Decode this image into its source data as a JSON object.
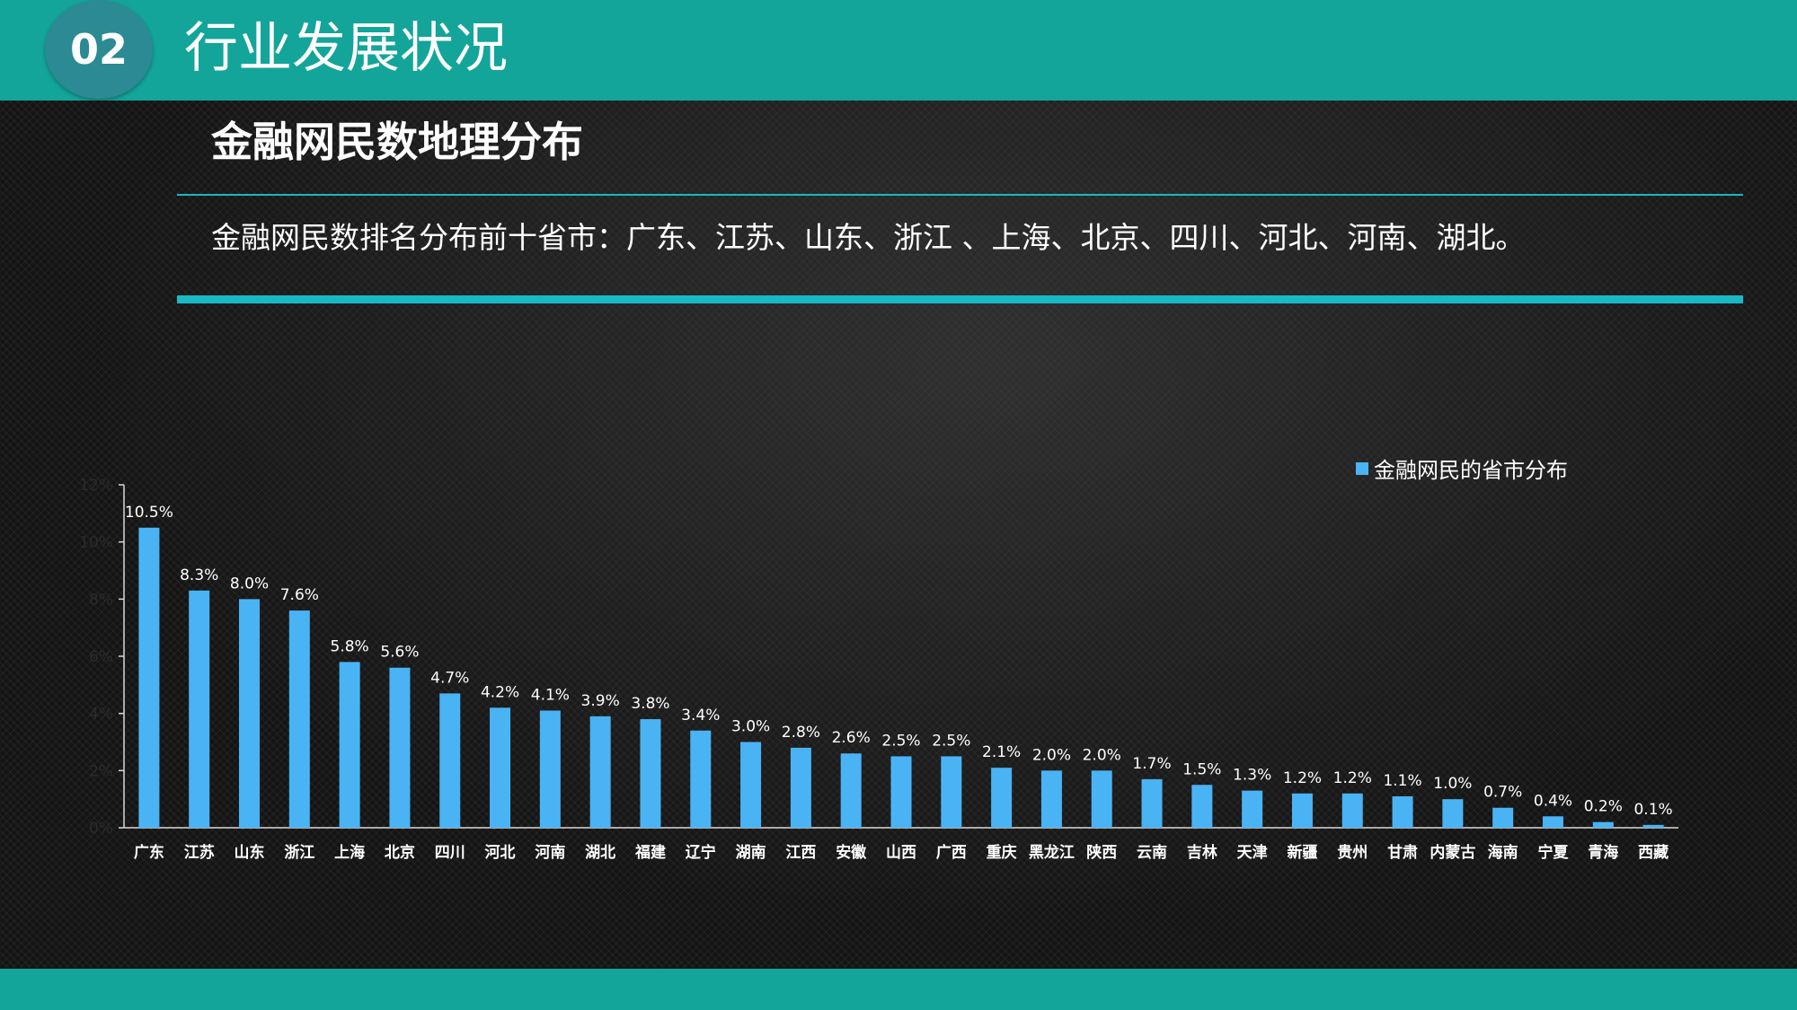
{
  "header": {
    "section_number": "02",
    "title": "行业发展状况"
  },
  "content": {
    "subtitle": "金融网民数地理分布",
    "summary": "金融网民数排名分布前十省市：广东、江苏、山东、浙江 、上海、北京、四川、河北、河南、湖北。"
  },
  "colors": {
    "accent": "#13a59a",
    "rule": "#19b8c4",
    "bar": "#4ab3f4"
  },
  "chart_data": {
    "type": "bar",
    "categories": [
      "广东",
      "江苏",
      "山东",
      "浙江",
      "上海",
      "北京",
      "四川",
      "河北",
      "河南",
      "湖北",
      "福建",
      "辽宁",
      "湖南",
      "江西",
      "安徽",
      "山西",
      "广西",
      "重庆",
      "黑龙江",
      "陕西",
      "云南",
      "吉林",
      "天津",
      "新疆",
      "贵州",
      "甘肃",
      "内蒙古",
      "海南",
      "宁夏",
      "青海",
      "西藏"
    ],
    "series": [
      {
        "name": "金融网民的省市分布",
        "values": [
          10.5,
          8.3,
          8.0,
          7.6,
          5.8,
          5.6,
          4.7,
          4.2,
          4.1,
          3.9,
          3.8,
          3.4,
          3.0,
          2.8,
          2.6,
          2.5,
          2.5,
          2.1,
          2.0,
          2.0,
          1.7,
          1.5,
          1.3,
          1.2,
          1.2,
          1.1,
          1.0,
          0.7,
          0.4,
          0.2,
          0.1
        ],
        "labels": [
          "10.5%",
          "8.3%",
          "8.0%",
          "7.6%",
          "5.8%",
          "5.6%",
          "4.7%",
          "4.2%",
          "4.1%",
          "3.9%",
          "3.8%",
          "3.4%",
          "3.0%",
          "2.8%",
          "2.6%",
          "2.5%",
          "2.5%",
          "2.1%",
          "2.0%",
          "2.0%",
          "1.7%",
          "1.5%",
          "1.3%",
          "1.2%",
          "1.2%",
          "1.1%",
          "1.0%",
          "0.7%",
          "0.4%",
          "0.2%",
          "0.1%"
        ]
      }
    ],
    "ylim": [
      0,
      12
    ],
    "yticks": [
      0,
      2,
      4,
      6,
      8,
      10,
      12
    ],
    "ytick_labels": [
      "0%",
      "2%",
      "4%",
      "6%",
      "8%",
      "10%",
      "12%"
    ],
    "legend_position": "top-right",
    "grid": false
  }
}
